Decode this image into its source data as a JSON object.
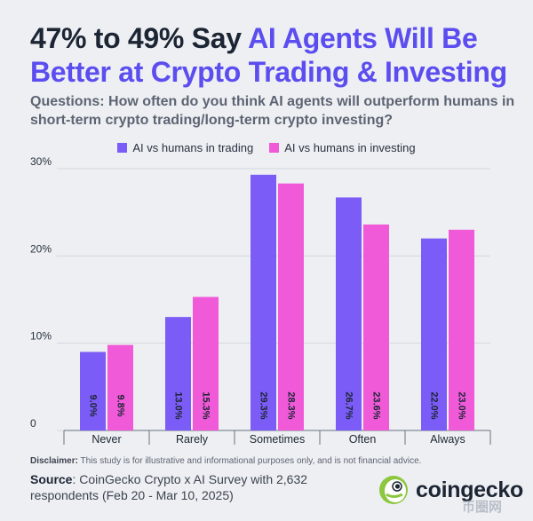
{
  "header": {
    "title_lead": "47% to 49% Say ",
    "title_highlight": "AI Agents Will Be Better at Crypto Trading & Investing",
    "subtitle": "Questions: How often do you think AI agents will outperform humans in short-term crypto trading/long-term crypto investing?"
  },
  "colors": {
    "accent": "#5c4df0",
    "trading": "#7b5cf6",
    "investing": "#f05ad8"
  },
  "chart_data": {
    "type": "bar",
    "title": "47% to 49% Say AI Agents Will Be Better at Crypto Trading & Investing",
    "categories": [
      "Never",
      "Rarely",
      "Sometimes",
      "Often",
      "Always"
    ],
    "series": [
      {
        "name": "AI vs humans in trading",
        "color": "#7b5cf6",
        "values": [
          9.0,
          13.0,
          29.3,
          26.7,
          22.0
        ],
        "labels": [
          "9.0%",
          "13.0%",
          "29.3%",
          "26.7%",
          "22.0%"
        ]
      },
      {
        "name": "AI vs humans in investing",
        "color": "#f05ad8",
        "values": [
          9.8,
          15.3,
          28.3,
          23.6,
          23.0
        ],
        "labels": [
          "9.8%",
          "15.3%",
          "28.3%",
          "23.6%",
          "23.0%"
        ]
      }
    ],
    "yticks": [
      0,
      10,
      20,
      30
    ],
    "ytick_labels": [
      "0",
      "10%",
      "20%",
      "30%"
    ],
    "ylim": [
      0,
      30
    ],
    "grid": true,
    "legend": "top-center"
  },
  "footer": {
    "disclaimer_label": "Disclaimer:",
    "disclaimer_text": " This study is for illustrative and informational purposes only, and is not financial advice.",
    "source_label": "Source",
    "source_text": ": CoinGecko Crypto x AI Survey with 2,632 respondents (Feb 20 - Mar 10, 2025)",
    "brand": "coingecko",
    "brand_icon": "gecko-logo-icon",
    "watermark": "币圈网"
  }
}
